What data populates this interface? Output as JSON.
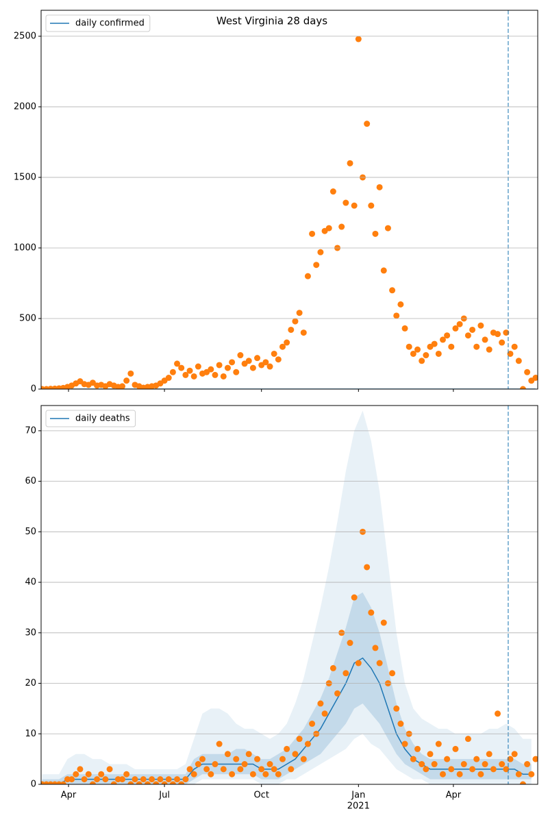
{
  "chart_data": [
    {
      "type": "scatter",
      "title": "West Virginia 28 days",
      "legend": "upper left",
      "grid": "y",
      "xlim": [
        65,
        536
      ],
      "ylim": [
        0,
        2684
      ],
      "yticks": [
        0,
        500,
        1000,
        1500,
        2000,
        2500
      ],
      "vline": {
        "x": 508,
        "color": "#1f77b4"
      },
      "series": [
        {
          "name": "daily confirmed",
          "kind": "line",
          "color": "#1f77b4",
          "x": [
            66,
            534
          ],
          "values": [
            0,
            0
          ]
        },
        {
          "kind": "points",
          "color": "#ff7f0e",
          "x": [
            66,
            70,
            74,
            78,
            82,
            86,
            90,
            94,
            98,
            102,
            106,
            110,
            114,
            118,
            122,
            126,
            130,
            134,
            138,
            142,
            146,
            150,
            154,
            158,
            162,
            166,
            170,
            174,
            178,
            182,
            186,
            190,
            194,
            198,
            202,
            206,
            210,
            214,
            218,
            222,
            226,
            230,
            234,
            238,
            242,
            246,
            250,
            254,
            258,
            262,
            266,
            270,
            274,
            278,
            282,
            286,
            290,
            294,
            298,
            302,
            306,
            310,
            314,
            318,
            322,
            326,
            330,
            334,
            338,
            342,
            346,
            350,
            354,
            358,
            362,
            366,
            370,
            374,
            378,
            382,
            386,
            390,
            394,
            398,
            402,
            406,
            410,
            414,
            418,
            422,
            426,
            430,
            434,
            438,
            442,
            446,
            450,
            454,
            458,
            462,
            466,
            470,
            474,
            478,
            482,
            486,
            490,
            494,
            498,
            502,
            506,
            510,
            514,
            518,
            522,
            526,
            530,
            534
          ],
          "values": [
            0,
            0,
            2,
            3,
            5,
            8,
            15,
            25,
            40,
            55,
            35,
            30,
            45,
            25,
            30,
            20,
            35,
            25,
            15,
            20,
            60,
            110,
            30,
            20,
            10,
            15,
            20,
            25,
            40,
            60,
            80,
            120,
            180,
            150,
            100,
            130,
            90,
            160,
            110,
            120,
            140,
            100,
            170,
            90,
            150,
            190,
            120,
            240,
            180,
            200,
            150,
            220,
            170,
            190,
            160,
            250,
            210,
            300,
            330,
            420,
            480,
            540,
            400,
            800,
            1100,
            880,
            970,
            1120,
            1140,
            1400,
            1000,
            1150,
            1320,
            1600,
            1300,
            2480,
            1500,
            1880,
            1300,
            1100,
            1430,
            840,
            1140,
            700,
            520,
            600,
            430,
            300,
            250,
            280,
            200,
            240,
            300,
            320,
            250,
            350,
            380,
            300,
            430,
            460,
            500,
            380,
            420,
            300,
            450,
            350,
            280,
            400,
            390,
            330,
            400,
            250,
            300,
            200,
            0,
            120,
            60,
            80
          ]
        }
      ]
    },
    {
      "type": "scatter",
      "legend": "upper left",
      "grid": "y",
      "xlim": [
        65,
        536
      ],
      "ylim": [
        0,
        75
      ],
      "yticks": [
        0,
        10,
        20,
        30,
        40,
        50,
        60,
        70
      ],
      "xticks": [
        {
          "value": 91,
          "label": "Apr"
        },
        {
          "value": 182,
          "label": "Jul"
        },
        {
          "value": 274,
          "label": "Oct"
        },
        {
          "value": 366,
          "label": "Jan",
          "sublabel": "2021"
        },
        {
          "value": 456,
          "label": "Apr"
        }
      ],
      "vline": {
        "x": 508,
        "color": "#1f77b4"
      },
      "bands": [
        {
          "color": "#1f77b4",
          "opacity": 0.1,
          "x": [
            66,
            74,
            82,
            90,
            98,
            106,
            114,
            122,
            130,
            138,
            146,
            154,
            162,
            170,
            178,
            186,
            194,
            202,
            210,
            218,
            226,
            234,
            242,
            250,
            258,
            266,
            274,
            282,
            290,
            298,
            306,
            314,
            322,
            330,
            338,
            346,
            354,
            362,
            370,
            378,
            386,
            394,
            402,
            410,
            418,
            426,
            434,
            442,
            450,
            458,
            466,
            474,
            482,
            490,
            498,
            506,
            514,
            522,
            530
          ],
          "lower": [
            0,
            0,
            0,
            0,
            0,
            0,
            0,
            0,
            0,
            0,
            0,
            0,
            0,
            0,
            0,
            0,
            0,
            0,
            0,
            1,
            1,
            1,
            1,
            1,
            1,
            1,
            0,
            0,
            0,
            1,
            1,
            2,
            3,
            4,
            5,
            6,
            7,
            9,
            10,
            8,
            7,
            5,
            3,
            2,
            1,
            1,
            0,
            0,
            0,
            0,
            0,
            0,
            0,
            0,
            0,
            0,
            0,
            0,
            0
          ],
          "upper": [
            2,
            2,
            2,
            5,
            6,
            6,
            5,
            5,
            4,
            4,
            4,
            3,
            3,
            3,
            3,
            3,
            3,
            4,
            9,
            14,
            15,
            15,
            14,
            12,
            11,
            11,
            10,
            9,
            10,
            12,
            16,
            21,
            28,
            35,
            43,
            52,
            62,
            70,
            74,
            68,
            58,
            44,
            30,
            20,
            15,
            13,
            12,
            11,
            11,
            10,
            10,
            10,
            10,
            11,
            11,
            12,
            11,
            9,
            9
          ]
        },
        {
          "color": "#1f77b4",
          "opacity": 0.18,
          "x": [
            66,
            74,
            82,
            90,
            98,
            106,
            114,
            122,
            130,
            138,
            146,
            154,
            162,
            170,
            178,
            186,
            194,
            202,
            210,
            218,
            226,
            234,
            242,
            250,
            258,
            266,
            274,
            282,
            290,
            298,
            306,
            314,
            322,
            330,
            338,
            346,
            354,
            362,
            370,
            378,
            386,
            394,
            402,
            410,
            418,
            426,
            434,
            442,
            450,
            458,
            466,
            474,
            482,
            490,
            498,
            506,
            514,
            522,
            530
          ],
          "lower": [
            0,
            0,
            0,
            0,
            0,
            0,
            0,
            0,
            0,
            0,
            0,
            0,
            0,
            0,
            0,
            0,
            0,
            0,
            1,
            2,
            2,
            2,
            2,
            2,
            2,
            2,
            1,
            1,
            1,
            2,
            3,
            4,
            5,
            6,
            8,
            10,
            12,
            15,
            16,
            14,
            12,
            9,
            6,
            4,
            3,
            2,
            1,
            1,
            1,
            1,
            1,
            1,
            1,
            1,
            1,
            1,
            1,
            1,
            1
          ],
          "upper": [
            1,
            1,
            1,
            2,
            2,
            2,
            2,
            2,
            2,
            2,
            2,
            2,
            2,
            2,
            2,
            2,
            2,
            2,
            5,
            6,
            6,
            6,
            6,
            7,
            7,
            6,
            5,
            5,
            6,
            7,
            9,
            11,
            14,
            17,
            21,
            26,
            31,
            37,
            38,
            35,
            30,
            23,
            16,
            11,
            8,
            6,
            5,
            5,
            5,
            5,
            5,
            5,
            5,
            5,
            5,
            5,
            5,
            4,
            4
          ]
        }
      ],
      "series": [
        {
          "name": "daily deaths",
          "kind": "line",
          "color": "#1f77b4",
          "x": [
            66,
            74,
            82,
            90,
            98,
            106,
            114,
            122,
            130,
            138,
            146,
            154,
            162,
            170,
            178,
            186,
            194,
            202,
            210,
            218,
            226,
            234,
            242,
            250,
            258,
            266,
            274,
            282,
            290,
            298,
            306,
            314,
            322,
            330,
            338,
            346,
            354,
            362,
            370,
            378,
            386,
            394,
            402,
            410,
            418,
            426,
            434,
            442,
            450,
            458,
            466,
            474,
            482,
            490,
            498,
            506,
            514,
            522,
            530
          ],
          "values": [
            0,
            0,
            0,
            1,
            1,
            1,
            1,
            1,
            1,
            1,
            1,
            1,
            1,
            1,
            1,
            1,
            1,
            1,
            3,
            4,
            4,
            4,
            4,
            4,
            4,
            4,
            3,
            3,
            3,
            4,
            5,
            7,
            9,
            11,
            14,
            17,
            20,
            24,
            25,
            23,
            20,
            15,
            10,
            7,
            5,
            4,
            3,
            3,
            3,
            3,
            3,
            3,
            3,
            3,
            3,
            3,
            3,
            2,
            2
          ]
        },
        {
          "kind": "points",
          "color": "#ff7f0e",
          "x": [
            66,
            70,
            74,
            78,
            82,
            86,
            90,
            94,
            98,
            102,
            106,
            110,
            114,
            118,
            122,
            126,
            130,
            134,
            138,
            142,
            146,
            150,
            154,
            158,
            162,
            166,
            170,
            174,
            178,
            182,
            186,
            190,
            194,
            198,
            202,
            206,
            210,
            214,
            218,
            222,
            226,
            230,
            234,
            238,
            242,
            246,
            250,
            254,
            258,
            262,
            266,
            270,
            274,
            278,
            282,
            286,
            290,
            294,
            298,
            302,
            306,
            310,
            314,
            318,
            322,
            326,
            330,
            334,
            338,
            342,
            346,
            350,
            354,
            358,
            362,
            366,
            370,
            374,
            378,
            382,
            386,
            390,
            394,
            398,
            402,
            406,
            410,
            414,
            418,
            422,
            426,
            430,
            434,
            438,
            442,
            446,
            450,
            454,
            458,
            462,
            466,
            470,
            474,
            478,
            482,
            486,
            490,
            494,
            498,
            502,
            506,
            510,
            514,
            518,
            522,
            526,
            530,
            534
          ],
          "values": [
            0,
            0,
            0,
            0,
            0,
            0,
            1,
            1,
            2,
            3,
            1,
            2,
            0,
            1,
            2,
            1,
            3,
            0,
            1,
            1,
            2,
            0,
            1,
            0,
            1,
            0,
            1,
            0,
            1,
            0,
            1,
            0,
            1,
            0,
            1,
            3,
            2,
            4,
            5,
            3,
            2,
            4,
            8,
            3,
            6,
            2,
            5,
            3,
            4,
            6,
            2,
            5,
            3,
            2,
            4,
            3,
            2,
            5,
            7,
            3,
            6,
            9,
            5,
            8,
            12,
            10,
            16,
            14,
            20,
            23,
            18,
            30,
            22,
            28,
            37,
            24,
            50,
            43,
            34,
            27,
            24,
            32,
            20,
            22,
            15,
            12,
            8,
            10,
            5,
            7,
            4,
            3,
            6,
            4,
            8,
            2,
            5,
            3,
            7,
            2,
            4,
            9,
            3,
            5,
            2,
            4,
            6,
            3,
            14,
            4,
            3,
            5,
            6,
            2,
            0,
            4,
            2,
            5
          ]
        }
      ]
    }
  ]
}
